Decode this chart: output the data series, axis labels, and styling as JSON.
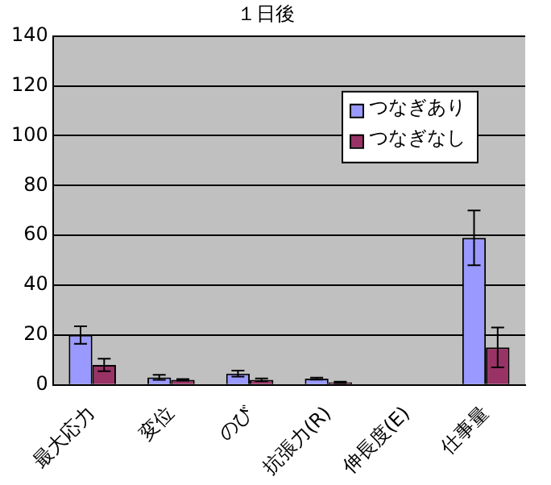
{
  "chart_data": {
    "type": "bar",
    "title": "１日後",
    "categories": [
      "最大応力",
      "変位",
      "のび",
      "抗張力(R)",
      "伸長度(E)",
      "仕事量"
    ],
    "series": [
      {
        "name": "つなぎあり",
        "color": "#9999ff",
        "values": [
          20,
          3,
          4.5,
          2.5,
          null,
          59
        ],
        "errors": [
          3.5,
          1,
          1.2,
          0.4,
          null,
          11
        ]
      },
      {
        "name": "つなぎなし",
        "color": "#993366",
        "values": [
          8,
          2,
          2,
          1,
          null,
          15
        ],
        "errors": [
          2.5,
          0.3,
          0.6,
          0.3,
          null,
          8
        ]
      }
    ],
    "ylim": [
      0,
      140
    ],
    "yticks": [
      0,
      20,
      40,
      60,
      80,
      100,
      120,
      140
    ],
    "grid": "y",
    "legend": "top right"
  }
}
